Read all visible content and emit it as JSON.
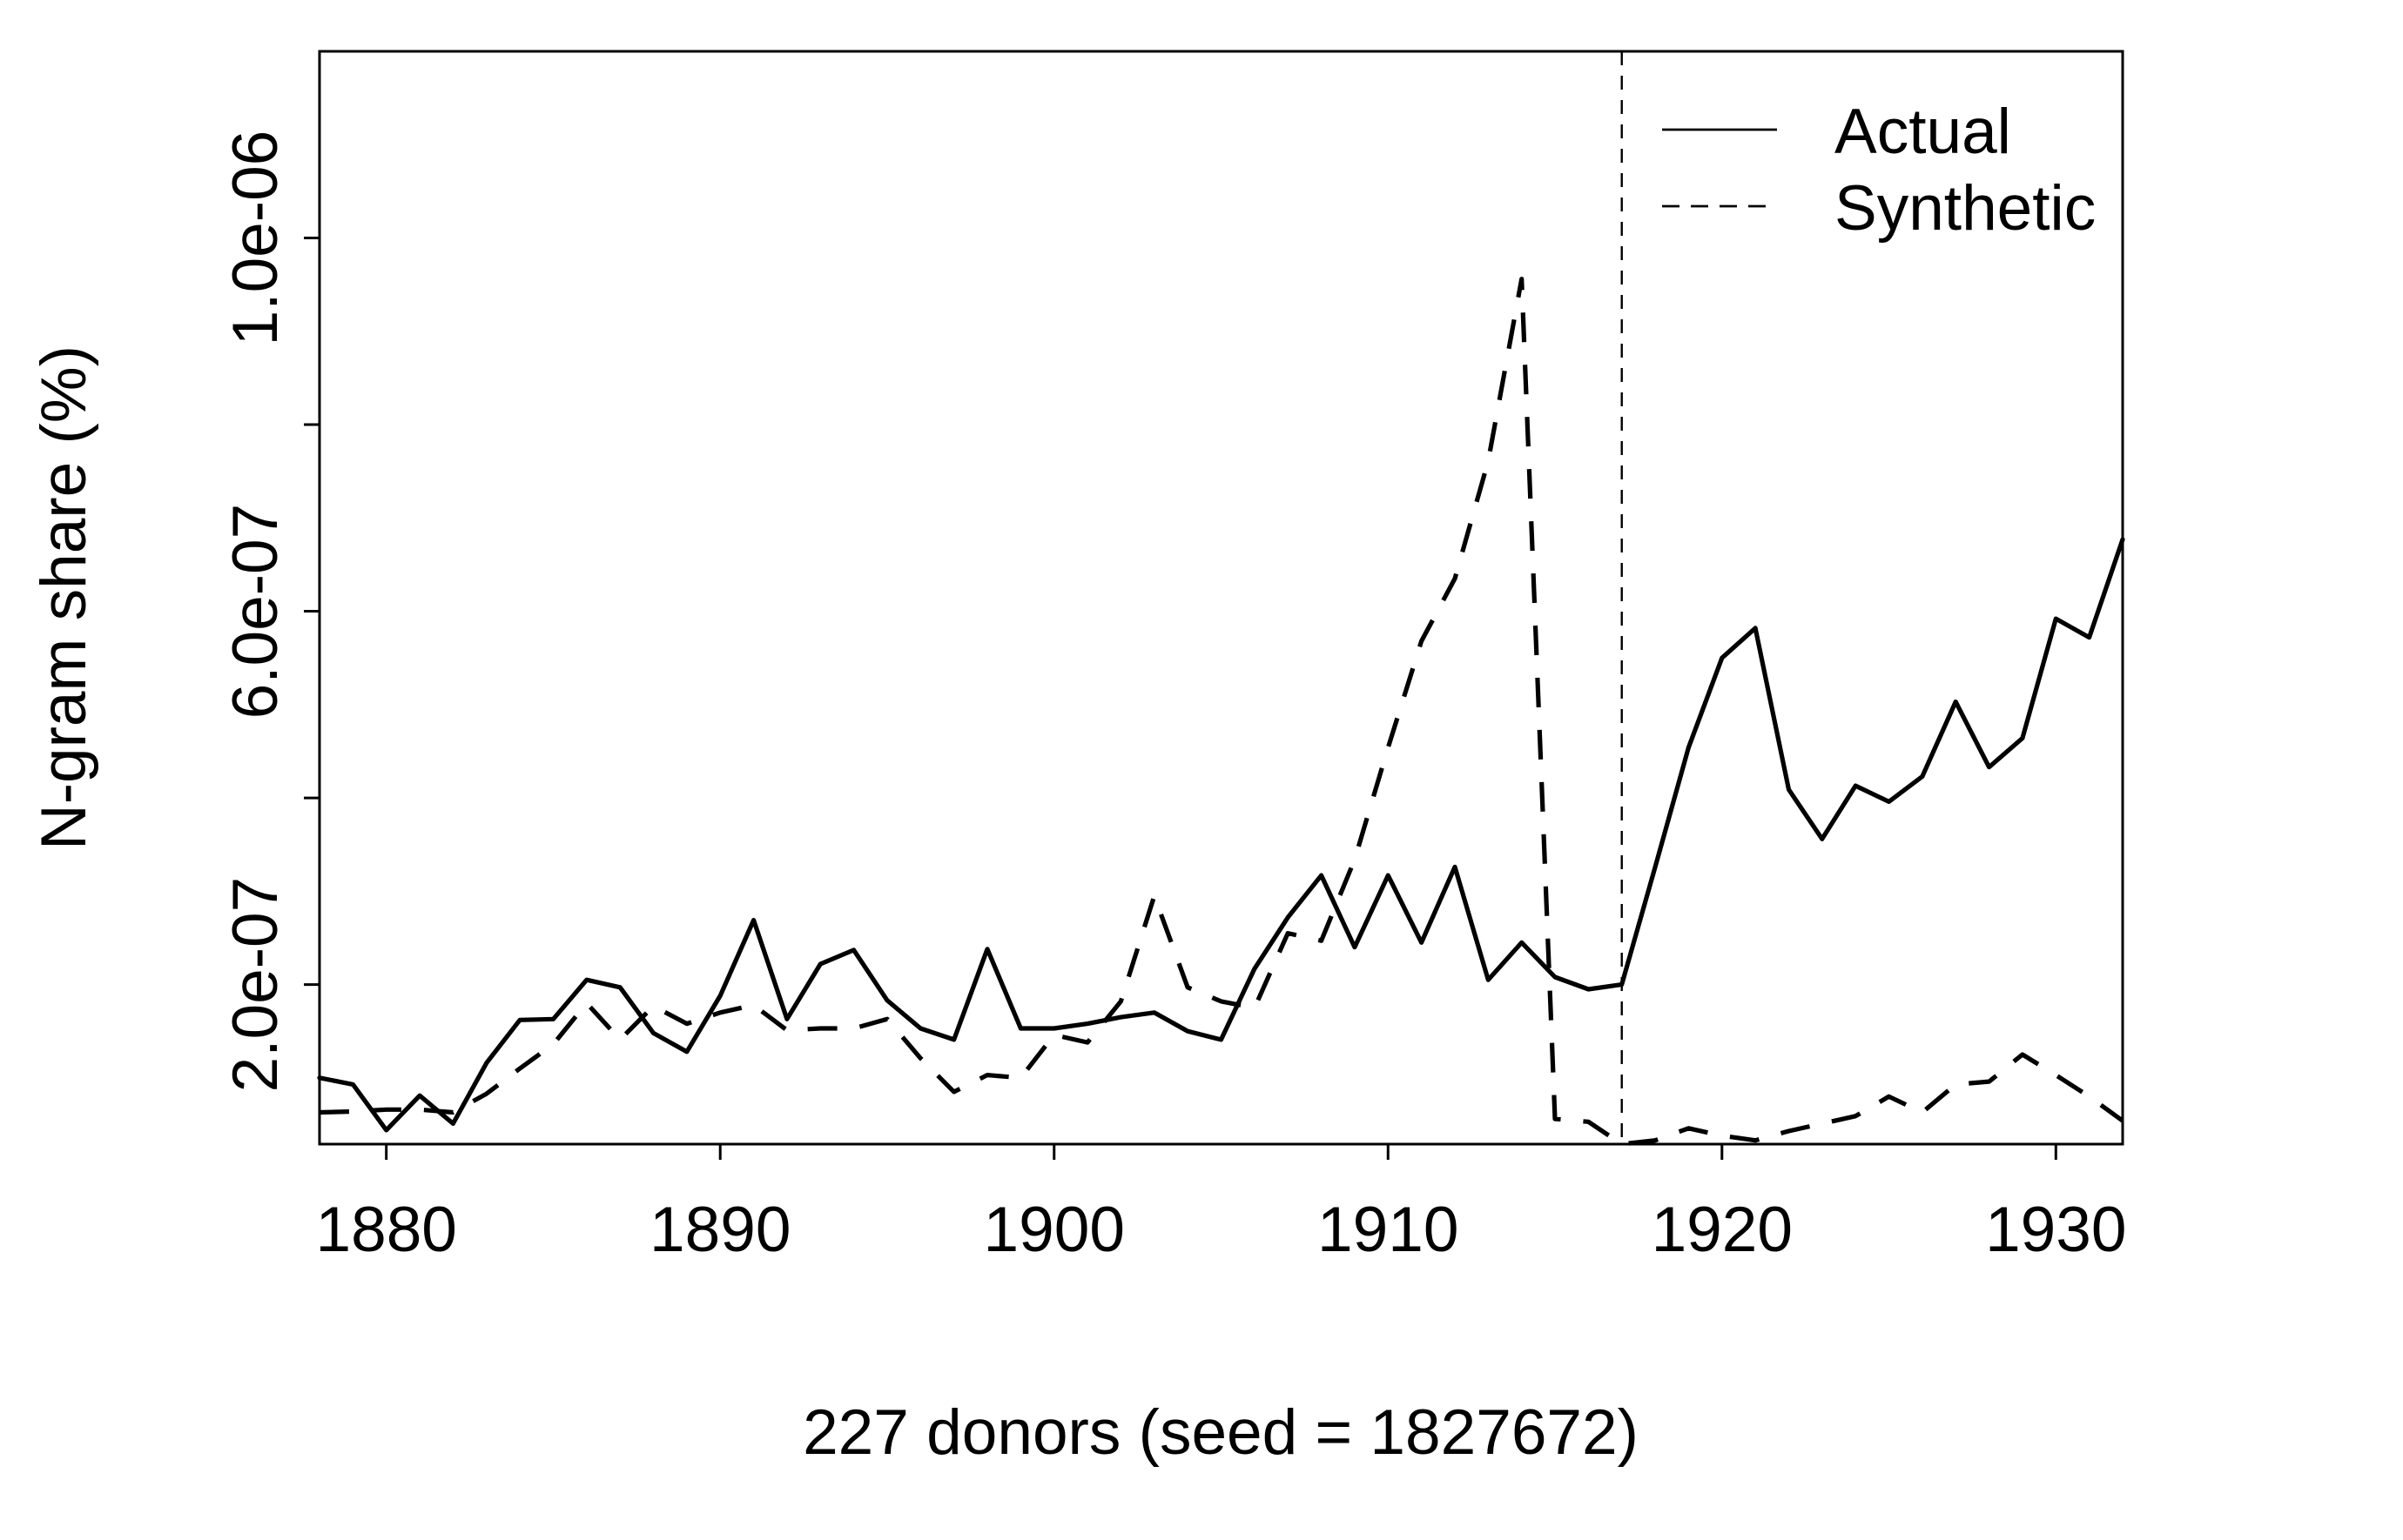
{
  "chart_data": {
    "type": "line",
    "xlabel": "227 donors (seed = 1827672)",
    "ylabel": "N-gram share (%)",
    "xlim": [
      1878,
      1932
    ],
    "ylim": [
      2.9e-08,
      1.2e-06
    ],
    "xticks": [
      1880,
      1890,
      1900,
      1910,
      1920,
      1930
    ],
    "xtick_labels": [
      "1880",
      "1890",
      "1900",
      "1910",
      "1920",
      "1930"
    ],
    "yticks": [
      2e-07,
      4e-07,
      6e-07,
      8e-07,
      1e-06
    ],
    "ytick_labels": [
      {
        "value": 2e-07,
        "label": "2.0e-07"
      },
      {
        "value": 6e-07,
        "label": "6.0e-07"
      },
      {
        "value": 1e-06,
        "label": "1.0e-06"
      }
    ],
    "grid": false,
    "legend": {
      "position": "top-right"
    },
    "reference_line": {
      "x": 1917,
      "linestyle": "dashed"
    },
    "x": [
      1878,
      1879,
      1880,
      1881,
      1882,
      1883,
      1884,
      1885,
      1886,
      1887,
      1888,
      1889,
      1890,
      1891,
      1892,
      1893,
      1894,
      1895,
      1896,
      1897,
      1898,
      1899,
      1900,
      1901,
      1902,
      1903,
      1904,
      1905,
      1906,
      1907,
      1908,
      1909,
      1910,
      1911,
      1912,
      1913,
      1914,
      1915,
      1916,
      1917,
      1918,
      1919,
      1920,
      1921,
      1922,
      1923,
      1924,
      1925,
      1926,
      1927,
      1928,
      1929,
      1930,
      1931,
      1932
    ],
    "series": [
      {
        "name": "Actual",
        "linestyle": "solid",
        "color": "#000000",
        "values": [
          1e-07,
          9.3e-08,
          4.4e-08,
          8.1e-08,
          5.1e-08,
          1.16e-07,
          1.62e-07,
          1.63e-07,
          2.05e-07,
          1.97e-07,
          1.48e-07,
          1.28e-07,
          1.88e-07,
          2.69e-07,
          1.63e-07,
          2.22e-07,
          2.37e-07,
          1.83e-07,
          1.53e-07,
          1.41e-07,
          2.38e-07,
          1.53e-07,
          1.53e-07,
          1.58e-07,
          1.65e-07,
          1.7e-07,
          1.5e-07,
          1.41e-07,
          2.17e-07,
          2.72e-07,
          3.17e-07,
          2.4e-07,
          3.17e-07,
          2.45e-07,
          3.26e-07,
          2.05e-07,
          2.45e-07,
          2.08e-07,
          1.95e-07,
          2e-07,
          3.26e-07,
          4.54e-07,
          5.5e-07,
          5.82e-07,
          4.09e-07,
          3.56e-07,
          4.13e-07,
          3.96e-07,
          4.23e-07,
          5.03e-07,
          4.33e-07,
          4.64e-07,
          5.92e-07,
          5.72e-07,
          6.77e-07
        ]
      },
      {
        "name": "Synthetic",
        "linestyle": "dashed",
        "color": "#000000",
        "values": [
          6.3e-08,
          6.4e-08,
          6.6e-08,
          6.6e-08,
          6.3e-08,
          8.3e-08,
          1.1e-07,
          1.36e-07,
          1.8e-07,
          1.41e-07,
          1.77e-07,
          1.58e-07,
          1.7e-07,
          1.78e-07,
          1.51e-07,
          1.53e-07,
          1.53e-07,
          1.63e-07,
          1.21e-07,
          8.5e-08,
          1.03e-07,
          1e-07,
          1.46e-07,
          1.38e-07,
          1.82e-07,
          2.95e-07,
          1.97e-07,
          1.82e-07,
          1.75e-07,
          2.55e-07,
          2.47e-07,
          3.34e-07,
          4.54e-07,
          5.68e-07,
          6.35e-07,
          7.61e-07,
          9.56e-07,
          5.6e-08,
          5.3e-08,
          2.9e-08,
          3.3e-08,
          4.6e-08,
          3.8e-08,
          3.3e-08,
          4.3e-08,
          5.1e-08,
          5.9e-08,
          8e-08,
          6.3e-08,
          9.3e-08,
          9.6e-08,
          1.25e-07,
          1.03e-07,
          8e-08,
          5.4e-08
        ]
      }
    ]
  }
}
